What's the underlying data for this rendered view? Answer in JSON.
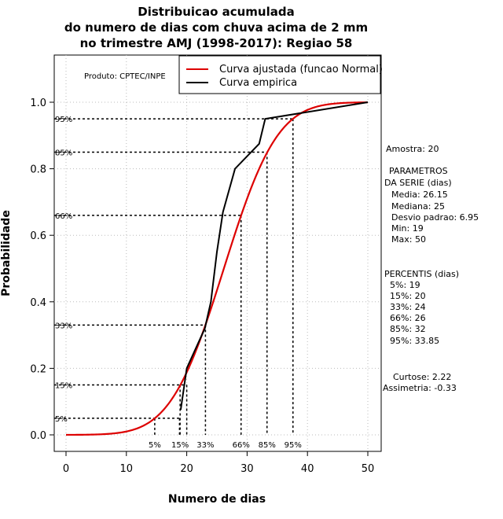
{
  "chart_data": {
    "type": "line",
    "title": [
      "Distribuicao acumulada",
      "do numero de dias com chuva acima de 2 mm",
      "no trimestre AMJ (1998-2017): Regiao 58"
    ],
    "xlabel": "Numero de dias",
    "ylabel": "Probabilidade",
    "xlim": [
      -2,
      52
    ],
    "ylim": [
      -0.05,
      1.15
    ],
    "x_ticks": [
      0,
      10,
      20,
      30,
      40,
      50
    ],
    "y_ticks": [
      0.0,
      0.2,
      0.4,
      0.6,
      0.8,
      1.0
    ],
    "x_tick_labels": [
      "0",
      "10",
      "20",
      "30",
      "40",
      "50"
    ],
    "y_tick_labels": [
      "0.0",
      "0.2",
      "0.4",
      "0.6",
      "0.8",
      "1.0"
    ],
    "grid": true,
    "credit": "Produto: CPTEC/INPE",
    "legend": {
      "position": "top-right",
      "entries": [
        {
          "label": "Curva ajustada (funcao Normal)",
          "color": "#dd0000"
        },
        {
          "label": "Curva empirica",
          "color": "#000000"
        }
      ]
    },
    "fitted_normal": {
      "mean": 26.15,
      "sd": 6.95,
      "x_range": [
        0,
        50
      ],
      "color": "#dd0000"
    },
    "empirical": {
      "color": "#000000",
      "x": [
        19,
        20,
        23,
        24,
        25,
        26,
        28,
        32,
        33,
        50
      ],
      "y": [
        0.075,
        0.2,
        0.32,
        0.4,
        0.55,
        0.67,
        0.8,
        0.875,
        0.95,
        1.0
      ]
    },
    "percentile_lines": [
      {
        "label": "5%",
        "y": 0.05,
        "x_fit": 14.7,
        "x_emp": 18.8
      },
      {
        "label": "15%",
        "y": 0.15,
        "x_fit": 18.9,
        "x_emp": 20.0
      },
      {
        "label": "33%",
        "y": 0.33,
        "x_fit": 23.1,
        "x_emp": 23.1
      },
      {
        "label": "66%",
        "y": 0.66,
        "x_fit": 29.0,
        "x_emp": 29.0
      },
      {
        "label": "85%",
        "y": 0.85,
        "x_fit": 33.3,
        "x_emp": 33.3
      },
      {
        "label": "95%",
        "y": 0.95,
        "x_fit": 37.6,
        "x_emp": 37.6
      }
    ],
    "side_text": {
      "amostra": "Amostra: 20",
      "parametros": [
        "PARAMETROS",
        "DA SERIE (dias)",
        "Media: 26.15",
        "Mediana: 25",
        "Desvio padrao: 6.95",
        "Min: 19",
        "Max: 50"
      ],
      "percentis": [
        "PERCENTIS (dias)",
        "5%: 19",
        "15%: 20",
        "33%: 24",
        "66%: 26",
        "85%: 32",
        "95%: 33.85"
      ],
      "curtose": "Curtose: 2.22",
      "assimetria": "Assimetria: -0.33"
    }
  }
}
